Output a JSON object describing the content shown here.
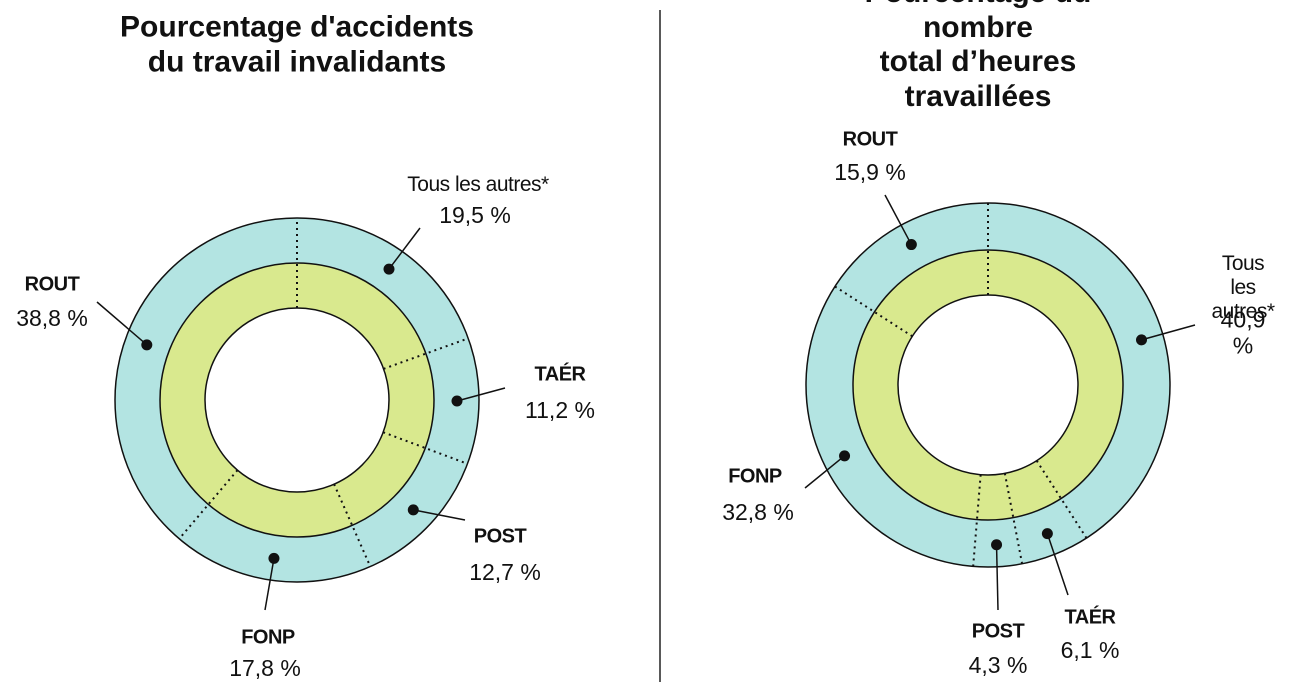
{
  "chart_data": [
    {
      "type": "donut",
      "title": "Pourcentage d'accidents\n du travail invalidants",
      "categories": [
        "Tous les autres*",
        "TAÉR",
        "POST",
        "FONP",
        "ROUT"
      ],
      "values": [
        19.5,
        11.2,
        12.7,
        17.8,
        38.8
      ],
      "value_labels": [
        "19,5 %",
        "11,2 %",
        "12,7 %",
        "17,8 %",
        "38,8 %"
      ],
      "outer_color": "#b3e4e2",
      "inner_color": "#d9e98e"
    },
    {
      "type": "donut",
      "title": "Pourcentage du nombre\ntotal d’heures travaillées",
      "categories": [
        "Tous les\nautres*",
        "TAÉR",
        "POST",
        "FONP",
        "ROUT"
      ],
      "values": [
        40.9,
        6.1,
        4.3,
        32.8,
        15.9
      ],
      "value_labels": [
        "40,9 %",
        "6,1 %",
        "4,3 %",
        "32,8 %",
        "15,9 %"
      ],
      "outer_color": "#b3e4e2",
      "inner_color": "#d9e98e"
    }
  ]
}
